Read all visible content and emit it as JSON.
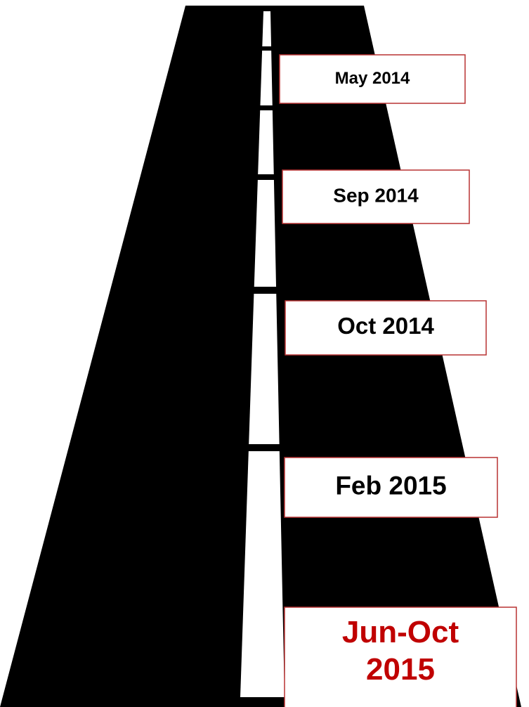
{
  "milestones": [
    {
      "lines": [
        "May 2014"
      ],
      "color": "#000000"
    },
    {
      "lines": [
        "Sep 2014"
      ],
      "color": "#000000"
    },
    {
      "lines": [
        "Oct 2014"
      ],
      "color": "#000000"
    },
    {
      "lines": [
        "Feb 2015"
      ],
      "color": "#000000"
    },
    {
      "lines": [
        "Jun-Oct",
        "2015"
      ],
      "color": "#c00000"
    }
  ]
}
